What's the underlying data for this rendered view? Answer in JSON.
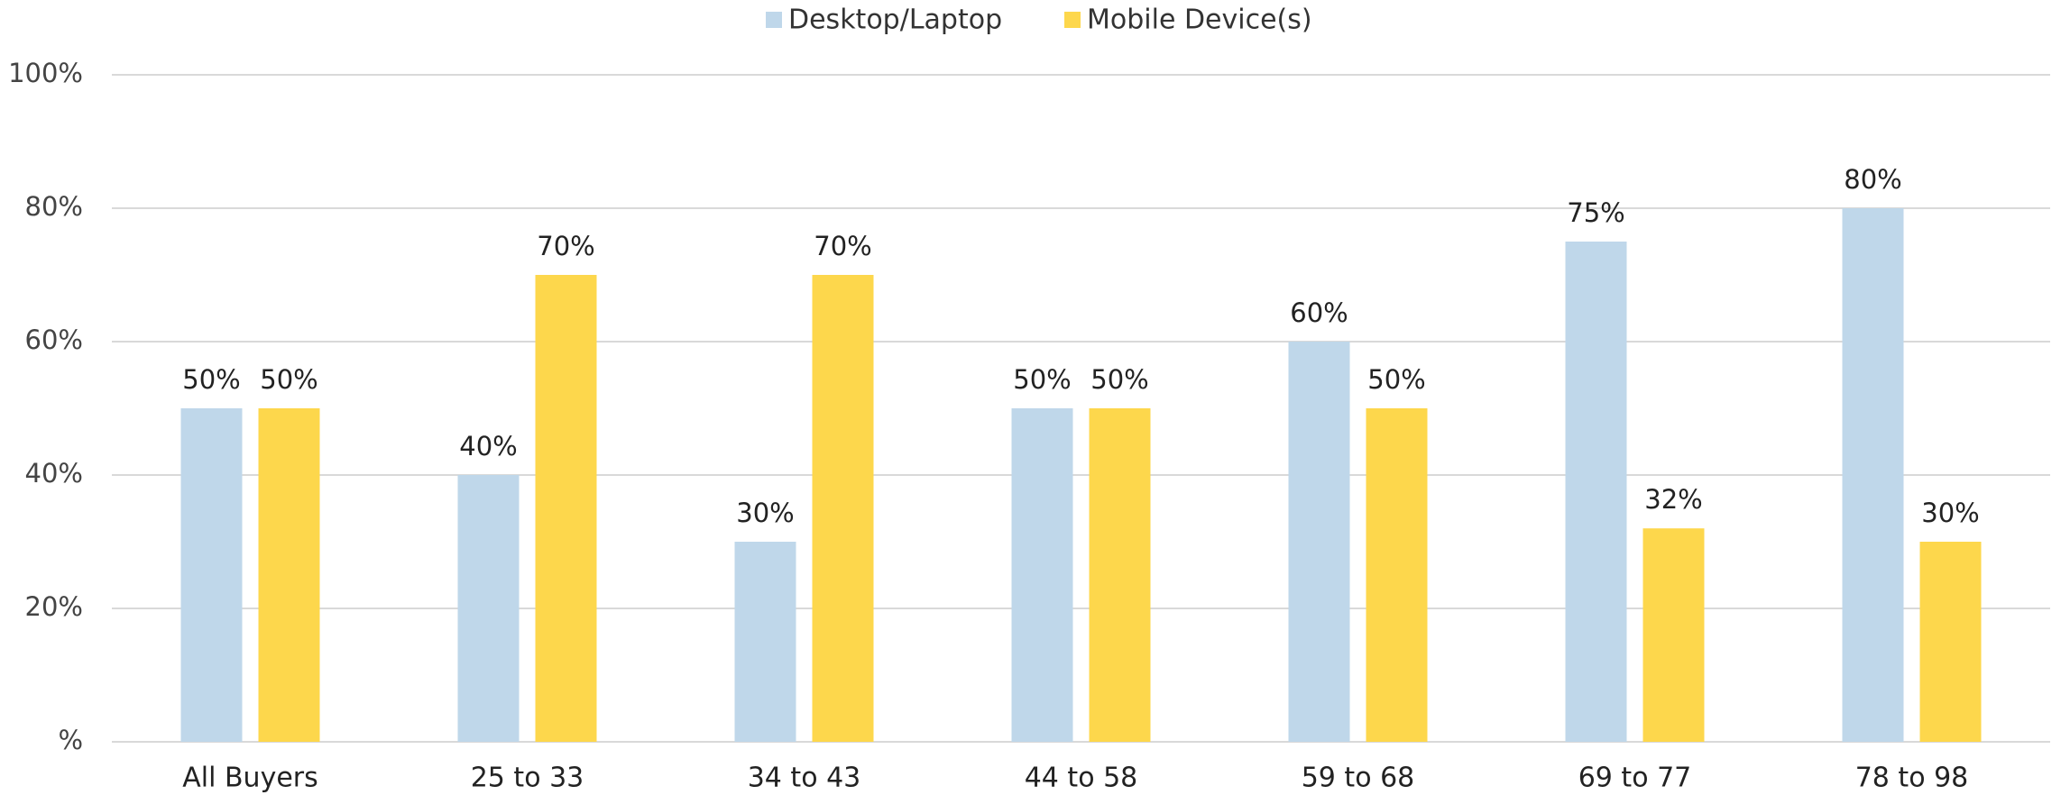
{
  "chart_data": {
    "type": "bar",
    "categories": [
      "All Buyers",
      "25 to 33",
      "34 to 43",
      "44 to 58",
      "59 to 68",
      "69 to 77",
      "78 to 98"
    ],
    "series": [
      {
        "name": "Desktop/Laptop",
        "color": "#bfd7ea",
        "values": [
          50,
          40,
          30,
          50,
          60,
          75,
          80
        ],
        "value_labels": [
          "50%",
          "40%",
          "30%",
          "50%",
          "60%",
          "75%",
          "80%"
        ]
      },
      {
        "name": "Mobile Device(s)",
        "color": "#fdd74c",
        "values": [
          50,
          70,
          70,
          50,
          50,
          32,
          30
        ],
        "value_labels": [
          "50%",
          "70%",
          "70%",
          "50%",
          "50%",
          "32%",
          "30%"
        ]
      }
    ],
    "ylim": [
      0,
      100
    ],
    "yticks": [
      {
        "value": 0,
        "label": "%"
      },
      {
        "value": 20,
        "label": "20%"
      },
      {
        "value": 40,
        "label": "40%"
      },
      {
        "value": 60,
        "label": "60%"
      },
      {
        "value": 80,
        "label": "80%"
      },
      {
        "value": 100,
        "label": "100%"
      }
    ],
    "grid": true,
    "legend": "top"
  }
}
